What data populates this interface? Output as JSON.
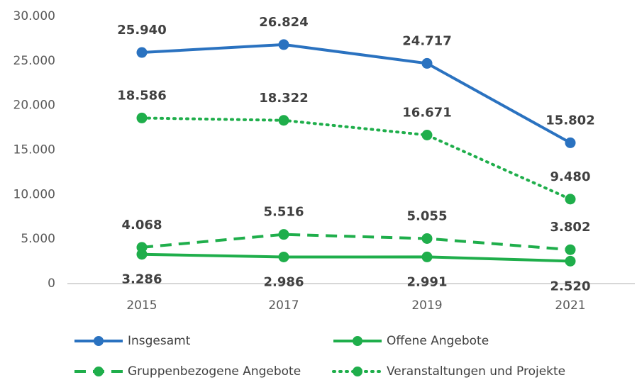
{
  "chart_data": {
    "type": "line",
    "categories": [
      "2015",
      "2017",
      "2019",
      "2021"
    ],
    "series": [
      {
        "name": "Insgesamt",
        "color": "#2a72c0",
        "dash": "solid",
        "label_position": "above",
        "values": [
          25940,
          26824,
          24717,
          15802
        ],
        "value_labels": [
          "25.940",
          "26.824",
          "24.717",
          "15.802"
        ]
      },
      {
        "name": "Offene Angebote",
        "color": "#1fae4b",
        "dash": "solid",
        "label_position": "below",
        "values": [
          3286,
          2986,
          2991,
          2520
        ],
        "value_labels": [
          "3.286",
          "2.986",
          "2.991",
          "2.520"
        ]
      },
      {
        "name": "Gruppenbezogene Angebote",
        "color": "#1fae4b",
        "dash": "dashed",
        "label_position": "above",
        "values": [
          4068,
          5516,
          5055,
          3802
        ],
        "value_labels": [
          "4.068",
          "5.516",
          "5.055",
          "3.802"
        ]
      },
      {
        "name": "Veranstaltungen und Projekte",
        "color": "#1fae4b",
        "dash": "dotted",
        "label_position": "above",
        "values": [
          18586,
          18322,
          16671,
          9480
        ],
        "value_labels": [
          "18.586",
          "18.322",
          "16.671",
          "9.480"
        ]
      }
    ],
    "ylim": [
      0,
      30000
    ],
    "yticks": [
      0,
      {
        "value": 5000,
        "label": "5.000"
      },
      {
        "value": 10000,
        "label": "10.000"
      },
      {
        "value": 15000,
        "label": "15.000"
      },
      {
        "value": 20000,
        "label": "20.000"
      },
      {
        "value": 25000,
        "label": "25.000"
      },
      {
        "value": 30000,
        "label": "30.000"
      }
    ],
    "grid": false
  }
}
